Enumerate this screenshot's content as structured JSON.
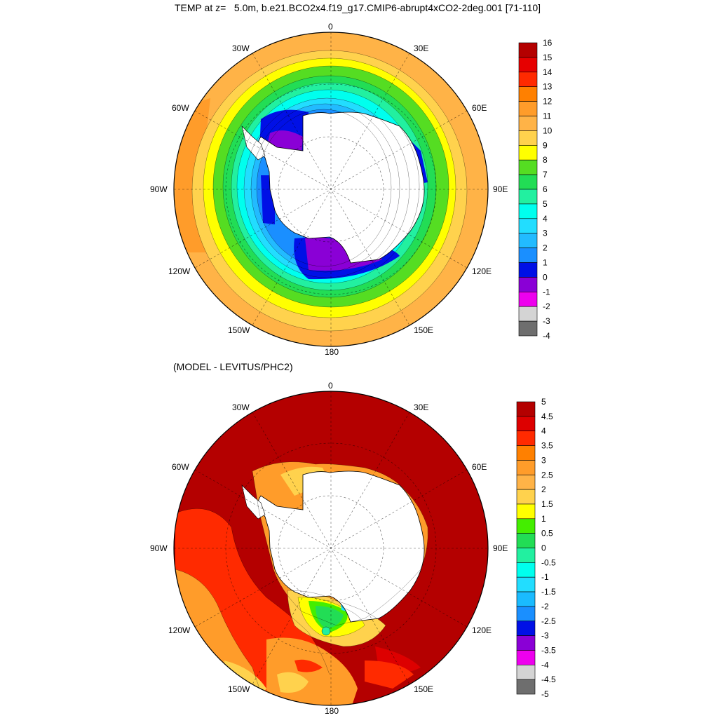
{
  "titles": {
    "top": "TEMP at z=   5.0m, b.e21.BCO2x4.f19_g17.CMIP6-abrupt4xCO2-2deg.001 [71-110]",
    "bottom": "(MODEL - LEVITUS/PHC2)"
  },
  "longitude_labels": [
    "0",
    "30E",
    "60E",
    "90E",
    "120E",
    "150E",
    "180",
    "150W",
    "120W",
    "90W",
    "60W",
    "30W"
  ],
  "colorbar_top": {
    "labels": [
      "16",
      "15",
      "14",
      "13",
      "12",
      "11",
      "10",
      "9",
      "8",
      "7",
      "6",
      "5",
      "4",
      "3",
      "2",
      "1",
      "0",
      "-1",
      "-2",
      "-3",
      "-4"
    ],
    "colors": [
      "#b40000",
      "#e60000",
      "#ff2a00",
      "#ff8000",
      "#ff9c2a",
      "#ffb347",
      "#ffd24d",
      "#ffff00",
      "#55dd22",
      "#22dd55",
      "#22f0a0",
      "#00ffee",
      "#22ddff",
      "#22bbff",
      "#1a8fff",
      "#0010e6",
      "#8a00d6",
      "#ee00ee",
      "#d4d4d4",
      "#6e6e6e"
    ]
  },
  "colorbar_bottom": {
    "labels": [
      "5",
      "4.5",
      "4",
      "3.5",
      "3",
      "2.5",
      "2",
      "1.5",
      "1",
      "0.5",
      "0",
      "-0.5",
      "-1",
      "-1.5",
      "-2",
      "-2.5",
      "-3",
      "-3.5",
      "-4",
      "-4.5",
      "-5"
    ],
    "colors": [
      "#b40000",
      "#dd0000",
      "#ff2a00",
      "#ff8000",
      "#ff9c2a",
      "#ffb347",
      "#ffd24d",
      "#ffff00",
      "#44ee00",
      "#22dd55",
      "#22f0a0",
      "#00ffee",
      "#22ddff",
      "#1abbff",
      "#1a8fff",
      "#0010e6",
      "#8a00d6",
      "#ee00ee",
      "#d4d4d4",
      "#6e6e6e"
    ]
  },
  "colors": {
    "land": "#ffffff",
    "outline": "#000000"
  }
}
